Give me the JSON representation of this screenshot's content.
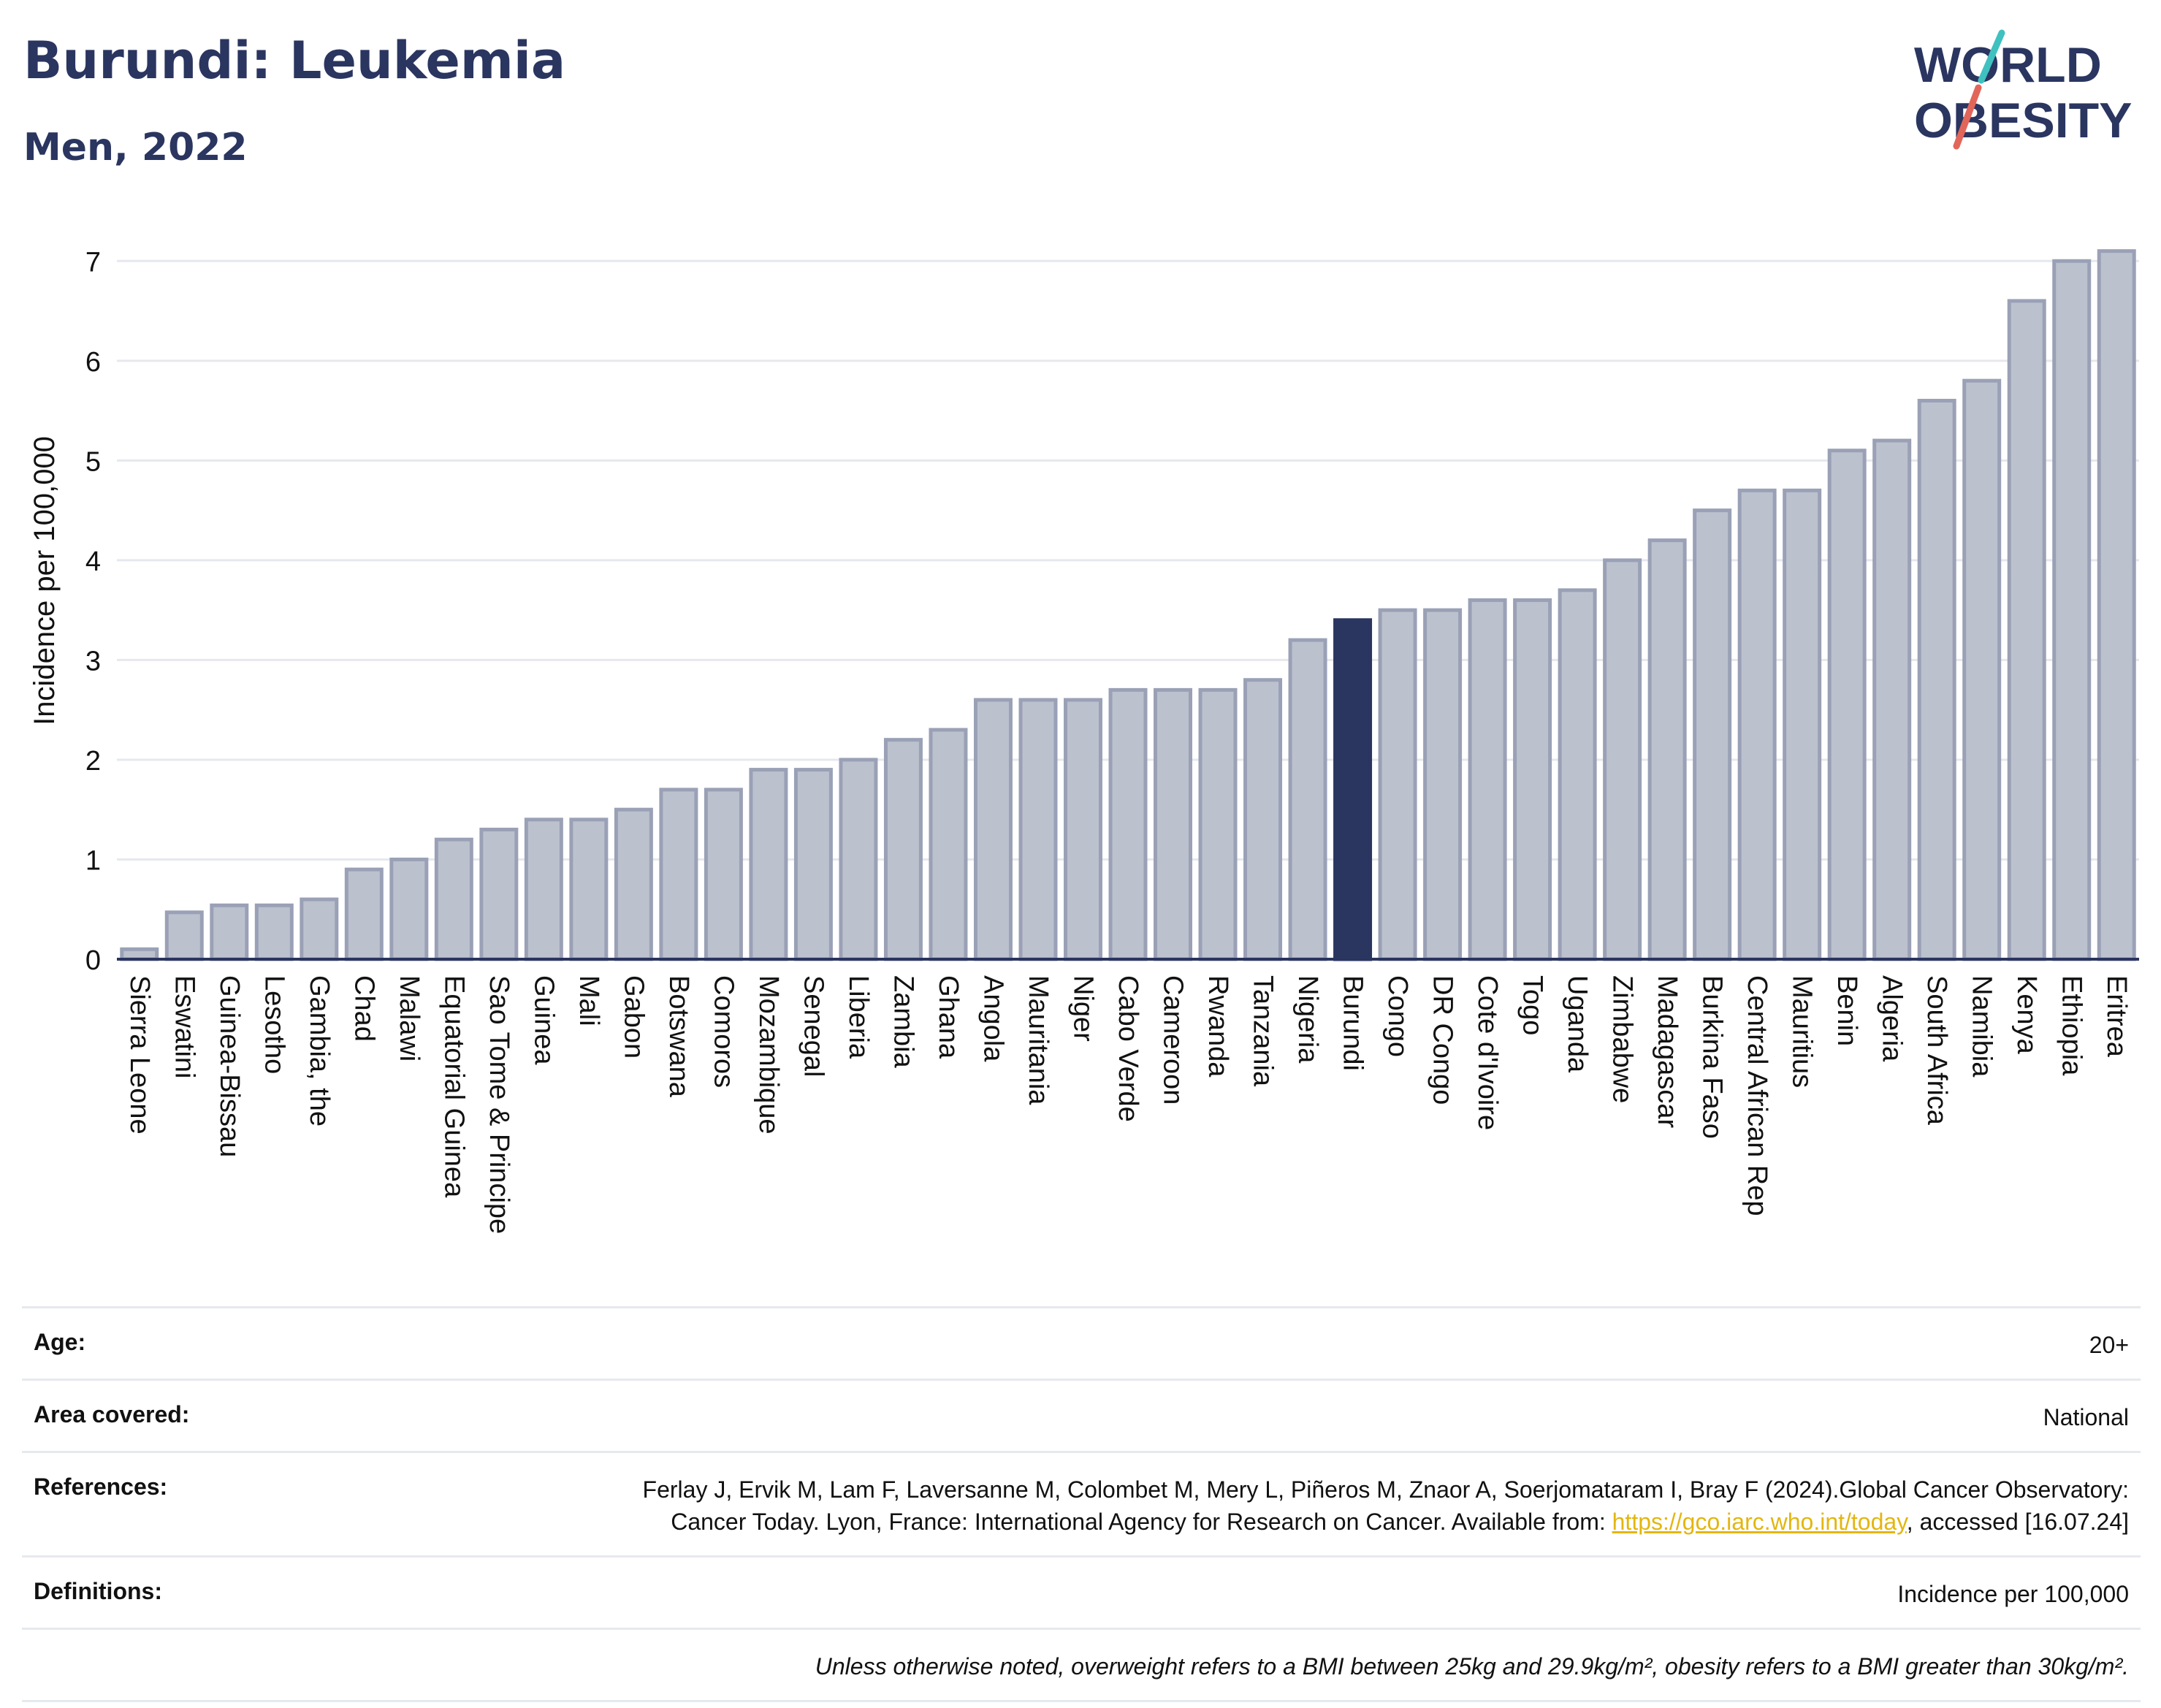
{
  "header": {
    "title": "Burundi: Leukemia",
    "subtitle": "Men, 2022"
  },
  "logo": {
    "line1": "WORLD",
    "line2": "OBESITY",
    "colors": {
      "text": "#2a3560",
      "slash_teal": "#3fc1c0",
      "slash_red": "#e2655a"
    }
  },
  "chart_data": {
    "type": "bar",
    "ylabel": "Incidence per 100,000",
    "ylim": [
      0,
      7.2
    ],
    "yticks": [
      0,
      1,
      2,
      3,
      4,
      5,
      6,
      7
    ],
    "grid": true,
    "highlight": "Burundi",
    "colors": {
      "bar": "#bcc1ce",
      "bar_edge": "#9aa1b6",
      "highlight": "#2a3560",
      "grid": "#e6e8ee",
      "axis": "#2a3560"
    },
    "categories": [
      "Sierra Leone",
      "Eswatini",
      "Guinea-Bissau",
      "Lesotho",
      "Gambia, the",
      "Chad",
      "Malawi",
      "Equatorial Guinea",
      "Sao Tome & Principe",
      "Guinea",
      "Mali",
      "Gabon",
      "Botswana",
      "Comoros",
      "Mozambique",
      "Senegal",
      "Liberia",
      "Zambia",
      "Ghana",
      "Angola",
      "Mauritania",
      "Niger",
      "Cabo Verde",
      "Cameroon",
      "Rwanda",
      "Tanzania",
      "Nigeria",
      "Burundi",
      "Congo",
      "DR Congo",
      "Cote d'Ivoire",
      "Togo",
      "Uganda",
      "Zimbabwe",
      "Madagascar",
      "Burkina Faso",
      "Central African Rep",
      "Mauritius",
      "Benin",
      "Algeria",
      "South Africa",
      "Namibia",
      "Kenya",
      "Ethiopia",
      "Eritrea"
    ],
    "values": [
      0.1,
      0.47,
      0.54,
      0.54,
      0.6,
      0.9,
      1.0,
      1.2,
      1.3,
      1.4,
      1.4,
      1.5,
      1.7,
      1.7,
      1.9,
      1.9,
      2.0,
      2.2,
      2.3,
      2.6,
      2.6,
      2.6,
      2.7,
      2.7,
      2.7,
      2.8,
      3.2,
      3.4,
      3.5,
      3.5,
      3.6,
      3.6,
      3.7,
      4.0,
      4.2,
      4.5,
      4.7,
      4.7,
      5.1,
      5.2,
      5.6,
      5.8,
      6.6,
      7.0,
      7.1
    ]
  },
  "info": {
    "age": {
      "label": "Age:",
      "value": "20+"
    },
    "area": {
      "label": "Area covered:",
      "value": "National"
    },
    "references": {
      "label": "References:",
      "text1": "Ferlay J, Ervik M, Lam F, Laversanne M, Colombet M, Mery L, Piñeros M, Znaor A, Soerjomataram I, Bray F (2024).Global Cancer Observatory: Cancer Today. Lyon, France: International Agency for Research on Cancer. Available from: ",
      "link": "https://gco.iarc.who.int/today",
      "text2": ", accessed [16.07.24]"
    },
    "definitions": {
      "label": "Definitions:",
      "value": "Incidence per 100,000"
    },
    "note": "Unless otherwise noted, overweight refers to a BMI between 25kg and 29.9kg/m², obesity refers to a BMI greater than 30kg/m²."
  }
}
